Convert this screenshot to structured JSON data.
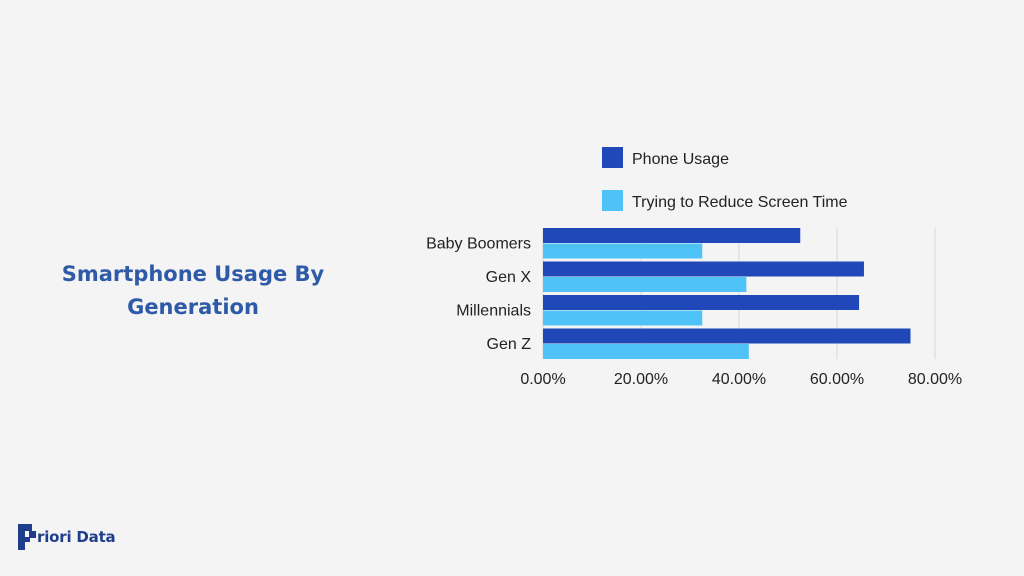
{
  "page": {
    "title_line1": "Smartphone Usage By",
    "title_line2": "Generation",
    "logo_text": "riori Data"
  },
  "colors": {
    "background": "#f4f4f4",
    "title": "#2e5aa8",
    "series_1": "#2148b8",
    "series_2": "#4fc3f7",
    "logo": "#1f3f8c"
  },
  "chart_data": {
    "type": "bar",
    "orientation": "horizontal",
    "title": "Smartphone Usage By Generation",
    "categories": [
      "Baby Boomers",
      "Gen X",
      "Millennials",
      "Gen Z"
    ],
    "series": [
      {
        "name": "Phone Usage",
        "values": [
          52.5,
          65.5,
          64.5,
          75.0
        ]
      },
      {
        "name": "Trying to Reduce Screen Time",
        "values": [
          32.5,
          41.5,
          32.5,
          42.0
        ]
      }
    ],
    "x_ticks": [
      "0.00%",
      "20.00%",
      "40.00%",
      "60.00%",
      "80.00%"
    ],
    "xlim": [
      0,
      80
    ],
    "grid": true,
    "legend_position": "top"
  }
}
